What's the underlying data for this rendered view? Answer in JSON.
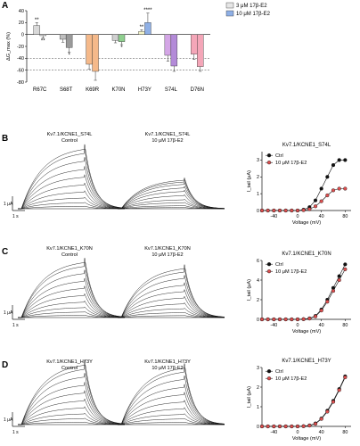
{
  "panels": {
    "A": {
      "letter": "A"
    },
    "B": {
      "letter": "B",
      "left_title": [
        "Kv7.1/KCNE1_S74L",
        "Control"
      ],
      "right_title": [
        "Kv7.1/KCNE1_S74L",
        "10 μM 17β-E2"
      ]
    },
    "C": {
      "letter": "C",
      "left_title": [
        "Kv7.1/KCNE1_K70N",
        "Control"
      ],
      "right_title": [
        "Kv7.1/KCNE1_K70N",
        "10 μM 17β-E2"
      ]
    },
    "D": {
      "letter": "D",
      "left_title": [
        "Kv7.1/KCNE1_H73Y",
        "Control"
      ],
      "right_title": [
        "Kv7.1/KCNE1_H73Y",
        "10 μM 17β-E2"
      ]
    }
  },
  "scalebars": {
    "current": "1 μA",
    "time": "1 s"
  },
  "colors": {
    "three_uM": "#e6e6e6",
    "ten_uM": "#8fb0e6",
    "ctrl": "#111111",
    "e2": "#e05050"
  },
  "chart_data": [
    {
      "type": "bar",
      "panel": "A",
      "ylabel": "ΔG_max (%)",
      "ylim": [
        -80,
        40
      ],
      "yticks": [
        "40",
        "20",
        "0",
        "-20",
        "-40",
        "-60",
        "-80"
      ],
      "legend": [
        "3 μM 17β-E2",
        "10 μM 17β-E2"
      ],
      "legend_position": "top-right",
      "categories": [
        "R67C",
        "S68T",
        "K69R",
        "K70N",
        "H73Y",
        "S74L",
        "D76N"
      ],
      "series": [
        {
          "name": "3 μM 17β-E2",
          "values": [
            15,
            -8,
            -50,
            -10,
            5,
            -35,
            -33
          ]
        },
        {
          "name": "10 μM 17β-E2",
          "values": [
            -2,
            -22,
            -62,
            -12,
            20,
            -53,
            -54
          ]
        }
      ],
      "error_bars": [
        [
          5,
          5,
          8,
          4,
          3,
          10,
          9
        ],
        [
          4,
          8,
          15,
          5,
          16,
          9,
          8
        ]
      ],
      "bar_colors_3uM": [
        "#d9d9d9",
        "#bfbfbf",
        "#f5b98a",
        "#d0d0d0",
        "#f5f5c8",
        "#d4a6e6",
        "#f4a6b8"
      ],
      "bar_colors_10uM": [
        "#d9d9d9",
        "#9a9a9a",
        "#f5b98a",
        "#8fd08f",
        "#8fb0e6",
        "#b38ad8",
        "#f4a6b8"
      ],
      "significance": [
        {
          "category": "R67C",
          "series": 0,
          "text": "**"
        },
        {
          "category": "R67C",
          "series": 1,
          "text": "**"
        },
        {
          "category": "S68T",
          "series": 1,
          "text": "*"
        },
        {
          "category": "K70N",
          "series": 1,
          "text": "*"
        },
        {
          "category": "H73Y",
          "series": 0,
          "text": "**"
        },
        {
          "category": "H73Y",
          "series": 1,
          "text": "****"
        }
      ],
      "reference_lines": [
        -40,
        -60
      ]
    },
    {
      "type": "line",
      "panel": "B",
      "title": "Kv7.1/KCNE1_S74L",
      "xlabel": "Voltage (mV)",
      "ylabel": "I_tail (μA)",
      "xlim": [
        -60,
        90
      ],
      "ylim": [
        0,
        3.5
      ],
      "xticks": [
        "-40",
        "0",
        "40",
        "80"
      ],
      "yticks": [
        "0",
        "1",
        "2",
        "3"
      ],
      "x": [
        -60,
        -50,
        -40,
        -30,
        -20,
        -10,
        0,
        10,
        20,
        30,
        40,
        50,
        60,
        70,
        80
      ],
      "series": [
        {
          "name": "Ctrl",
          "values": [
            0,
            0,
            0,
            0,
            0,
            0,
            0,
            0.05,
            0.2,
            0.6,
            1.3,
            2.0,
            2.7,
            3.0,
            3.0
          ]
        },
        {
          "name": "10 μM 17β-E2",
          "values": [
            0,
            0,
            0,
            0,
            0,
            0,
            0,
            0.02,
            0.08,
            0.25,
            0.55,
            0.9,
            1.2,
            1.3,
            1.3
          ]
        }
      ],
      "legend_position": "top-left"
    },
    {
      "type": "line",
      "panel": "C",
      "title": "Kv7.1/KCNE1_K70N",
      "xlabel": "Voltage (mV)",
      "ylabel": "I_tail (μA)",
      "xlim": [
        -60,
        90
      ],
      "ylim": [
        0,
        6
      ],
      "xticks": [
        "-40",
        "0",
        "40",
        "80"
      ],
      "yticks": [
        "0",
        "2",
        "4",
        "6"
      ],
      "x": [
        -60,
        -50,
        -40,
        -30,
        -20,
        -10,
        0,
        10,
        20,
        30,
        40,
        50,
        60,
        70,
        80
      ],
      "series": [
        {
          "name": "Ctrl",
          "values": [
            0,
            0,
            0,
            0,
            0,
            0,
            0,
            0.02,
            0.1,
            0.35,
            1.0,
            2.0,
            3.2,
            4.4,
            5.6
          ]
        },
        {
          "name": "10 μM 17β-E2",
          "values": [
            0,
            0,
            0,
            0,
            0,
            0,
            0,
            0.02,
            0.08,
            0.3,
            0.9,
            1.8,
            2.9,
            4.0,
            5.1
          ]
        }
      ],
      "legend_position": "top-left"
    },
    {
      "type": "line",
      "panel": "D",
      "title": "Kv7.1/KCNE1_H73Y",
      "xlabel": "Voltage (mV)",
      "ylabel": "I_tail (μA)",
      "xlim": [
        -60,
        90
      ],
      "ylim": [
        0,
        3
      ],
      "xticks": [
        "-40",
        "0",
        "40",
        "80"
      ],
      "yticks": [
        "0",
        "1",
        "2",
        "3"
      ],
      "x": [
        -60,
        -50,
        -40,
        -30,
        -20,
        -10,
        0,
        10,
        20,
        30,
        40,
        50,
        60,
        70,
        80
      ],
      "series": [
        {
          "name": "Ctrl",
          "values": [
            0,
            0,
            0,
            0,
            0,
            0,
            0,
            0.01,
            0.05,
            0.15,
            0.4,
            0.8,
            1.3,
            1.9,
            2.55
          ]
        },
        {
          "name": "10 μM 17β-E2",
          "values": [
            0,
            0,
            0,
            0,
            0,
            0,
            0,
            0.01,
            0.04,
            0.13,
            0.38,
            0.75,
            1.25,
            1.85,
            2.5
          ]
        }
      ],
      "legend_position": "top-left"
    }
  ]
}
